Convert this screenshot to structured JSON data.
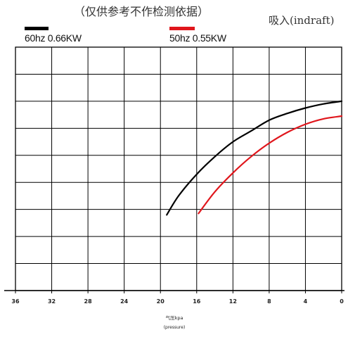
{
  "header": {
    "note": "（仅供参考不作检测依据）",
    "mode": "吸入(indraft)"
  },
  "chart_data": {
    "type": "line",
    "title": "",
    "xlabel": "气压kpa",
    "xlabel_sub": "(pressure)",
    "ylabel": "",
    "x_reversed": true,
    "xlim": [
      0,
      36
    ],
    "ylim": [
      0,
      9
    ],
    "x_ticks": [
      "36",
      "32",
      "28",
      "24",
      "20",
      "16",
      "12",
      "8",
      "4",
      "0"
    ],
    "grid": true,
    "legend": "top",
    "series": [
      {
        "name": "60hz 0.66KW",
        "color": "#000000",
        "x": [
          19.3,
          18,
          16,
          14,
          12,
          10,
          8,
          6,
          4,
          2,
          0
        ],
        "y": [
          2.8,
          3.5,
          4.3,
          4.95,
          5.5,
          5.9,
          6.3,
          6.55,
          6.75,
          6.9,
          7.0
        ]
      },
      {
        "name": "50hz 0.55KW",
        "color": "#e0161c",
        "x": [
          15.8,
          14,
          12,
          10,
          8,
          6,
          4,
          2,
          0
        ],
        "y": [
          2.85,
          3.65,
          4.35,
          4.95,
          5.45,
          5.85,
          6.15,
          6.35,
          6.45
        ]
      }
    ]
  }
}
